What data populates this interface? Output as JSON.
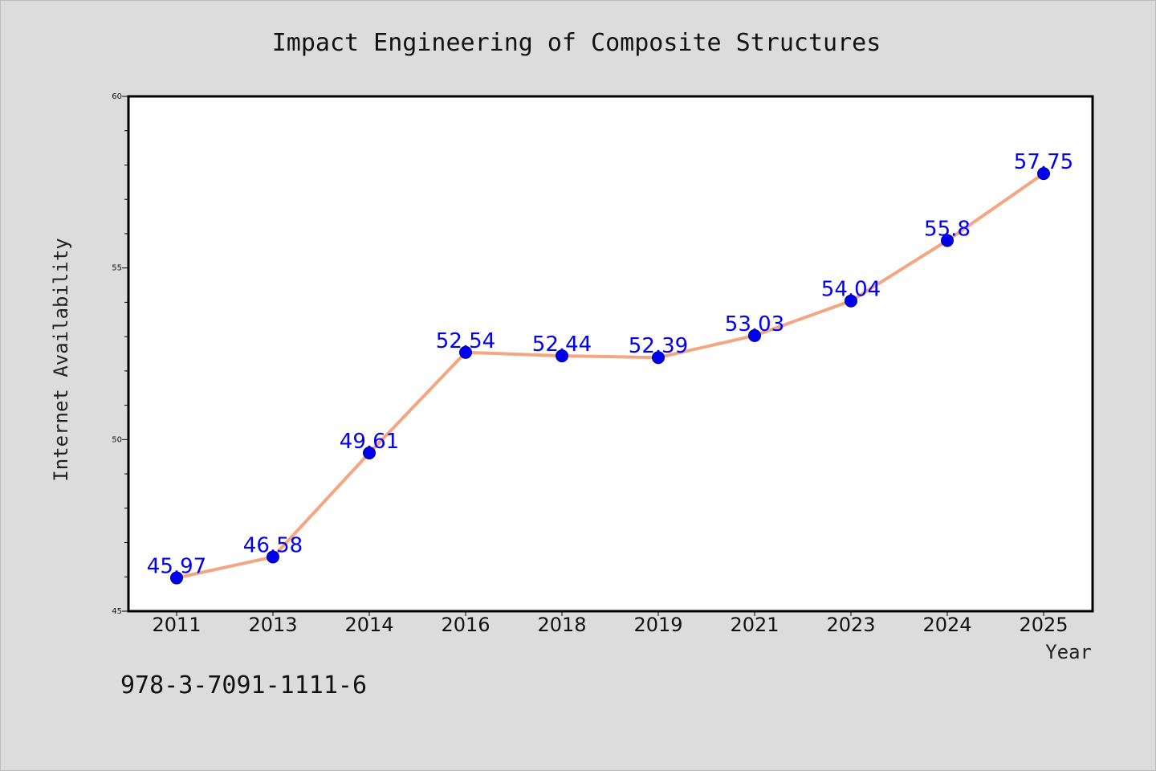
{
  "chart_data": {
    "type": "line",
    "title": "Impact Engineering of Composite Structures",
    "xlabel": "Year",
    "ylabel": "Internet Availability",
    "categories": [
      "2011",
      "2013",
      "2014",
      "2016",
      "2018",
      "2019",
      "2021",
      "2023",
      "2024",
      "2025"
    ],
    "series": [
      {
        "values": [
          45.97,
          46.58,
          49.61,
          52.54,
          52.44,
          52.39,
          53.03,
          54.04,
          55.8,
          57.75
        ],
        "data_labels": [
          "45.97",
          "46.58",
          "49.61",
          "52.54",
          "52.44",
          "52.39",
          "53.03",
          "54.04",
          "55.8",
          "57.75"
        ],
        "line_color": "#f4a582",
        "marker_color": "#0000ee"
      }
    ],
    "ylim": [
      45,
      60
    ],
    "y_ticks": [
      45,
      50,
      55,
      60
    ],
    "y_tick_labels": [
      "45",
      "50",
      "55",
      "60"
    ],
    "grid": false
  },
  "footer": {
    "isbn": "978-3-7091-1111-6"
  },
  "colors": {
    "background": "#dcdcdc",
    "plot_background": "#ffffff",
    "line": "#f4a582",
    "marker": "#0000ee",
    "label": "#0000ee"
  }
}
